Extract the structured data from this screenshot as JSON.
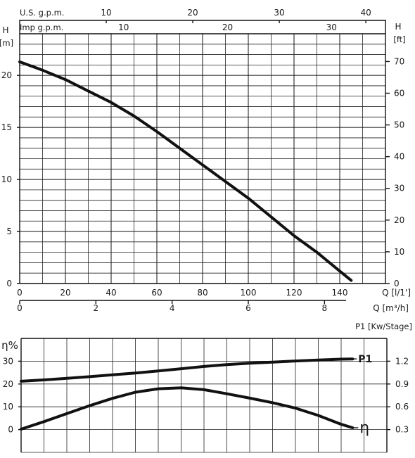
{
  "chart_data": [
    {
      "type": "line",
      "name_note": "head-capacity",
      "left_axis": {
        "label": "H",
        "unit": "[m]",
        "ticks": [
          0,
          5,
          10,
          15,
          20
        ],
        "range": [
          0,
          24
        ]
      },
      "right_axis": {
        "label": "H",
        "unit": "[ft]",
        "ticks": [
          0,
          10,
          20,
          30,
          40,
          50,
          60,
          70
        ]
      },
      "x_axis_lpm": {
        "unit": "Q [l/1']",
        "ticks": [
          0,
          20,
          40,
          60,
          80,
          100,
          120,
          140
        ],
        "range": [
          0,
          160
        ]
      },
      "x_axis_m3h": {
        "unit": "Q [m³/h]",
        "ticks": [
          0,
          2,
          4,
          6,
          8
        ]
      },
      "top_axis_us": {
        "label": "U.S.  g.p.m.",
        "ticks": [
          10,
          20,
          30,
          40
        ]
      },
      "top_axis_imp": {
        "label": "Imp  g.p.m.",
        "ticks": [
          10,
          20,
          30
        ]
      },
      "grid": true,
      "series": [
        {
          "x": [
            0,
            10,
            20,
            30,
            40,
            50,
            60,
            70,
            80,
            90,
            100,
            110,
            120,
            130,
            140,
            145
          ],
          "y": [
            21.3,
            20.5,
            19.6,
            18.5,
            17.4,
            16.1,
            14.6,
            13.0,
            11.4,
            9.8,
            8.2,
            6.4,
            4.6,
            3.0,
            1.2,
            0.3
          ]
        }
      ]
    },
    {
      "type": "line",
      "name_note": "efficiency-power",
      "left_axis": {
        "label": "η%",
        "ticks": [
          0,
          10,
          20,
          30
        ],
        "range": [
          -10,
          40
        ]
      },
      "right_axis": {
        "label": "P1 [Kw/Stage]",
        "ticks": [
          0.3,
          0.6,
          0.9,
          1.2
        ]
      },
      "grid": true,
      "series": [
        {
          "name": "P1",
          "x": [
            0,
            10,
            20,
            30,
            40,
            50,
            60,
            70,
            80,
            90,
            100,
            110,
            120,
            130,
            140,
            145
          ],
          "y": [
            21.2,
            21.8,
            22.5,
            23.2,
            24.0,
            24.8,
            25.7,
            26.7,
            27.7,
            28.5,
            29.1,
            29.6,
            30.1,
            30.5,
            30.9,
            31.0
          ]
        },
        {
          "name": "η",
          "x": [
            0,
            10,
            20,
            30,
            40,
            50,
            60,
            70,
            80,
            90,
            100,
            110,
            120,
            130,
            140,
            145
          ],
          "y": [
            0.2,
            3.5,
            7.0,
            10.5,
            13.7,
            16.4,
            17.9,
            18.3,
            17.5,
            15.7,
            13.8,
            11.8,
            9.4,
            6.2,
            2.3,
            0.8
          ]
        }
      ]
    }
  ]
}
